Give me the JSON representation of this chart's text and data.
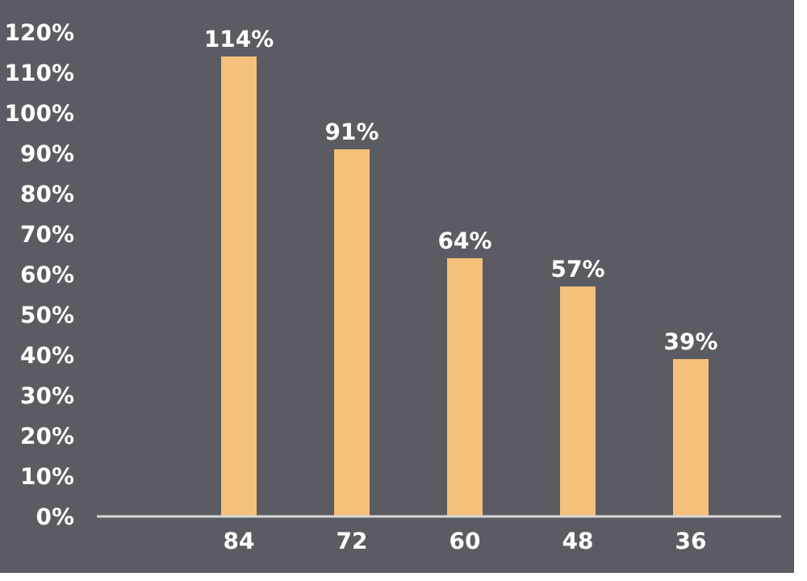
{
  "chart_data": {
    "type": "bar",
    "categories": [
      "84",
      "72",
      "60",
      "48",
      "36"
    ],
    "values": [
      114,
      91,
      64,
      57,
      39
    ],
    "value_labels": [
      "114%",
      "91%",
      "64%",
      "57%",
      "39%"
    ],
    "color": "#f5c07a",
    "ylim": [
      0,
      120
    ],
    "yticks": [
      {
        "value": 0,
        "label": "0%"
      },
      {
        "value": 10,
        "label": "10%"
      },
      {
        "value": 20,
        "label": "20%"
      },
      {
        "value": 30,
        "label": "30%"
      },
      {
        "value": 40,
        "label": "40%"
      },
      {
        "value": 50,
        "label": "50%"
      },
      {
        "value": 60,
        "label": "60%"
      },
      {
        "value": 70,
        "label": "70%"
      },
      {
        "value": 80,
        "label": "80%"
      },
      {
        "value": 90,
        "label": "90%"
      },
      {
        "value": 100,
        "label": "100%"
      },
      {
        "value": 110,
        "label": "110%"
      },
      {
        "value": 120,
        "label": "120%"
      }
    ],
    "grid": false
  }
}
